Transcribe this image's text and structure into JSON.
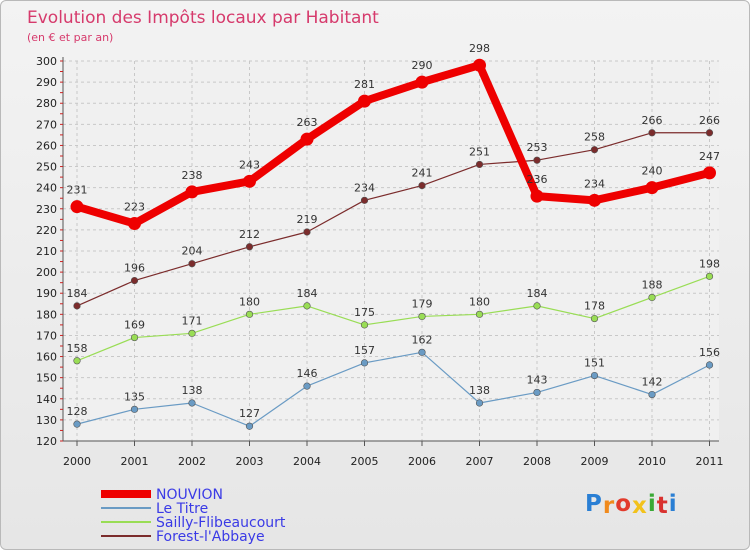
{
  "chart_data": {
    "type": "line",
    "title": "Evolution des Impôts locaux par Habitant",
    "subtitle": "(en € et par an)",
    "x": [
      "2000",
      "2001",
      "2002",
      "2003",
      "2004",
      "2005",
      "2006",
      "2007",
      "2008",
      "2009",
      "2010",
      "2011"
    ],
    "ylim": [
      120,
      300
    ],
    "yticks": [
      120,
      130,
      140,
      150,
      160,
      170,
      180,
      190,
      200,
      210,
      220,
      230,
      240,
      250,
      260,
      270,
      280,
      290,
      300
    ],
    "grid": true,
    "legend_position": "bottom-left",
    "series": [
      {
        "name": "NOUVION",
        "color": "#ee0000",
        "emphasis": true,
        "values": [
          231,
          223,
          238,
          243,
          263,
          281,
          290,
          298,
          236,
          234,
          240,
          247
        ]
      },
      {
        "name": "Le Titre",
        "color": "#6a9bc4",
        "values": [
          128,
          135,
          138,
          127,
          146,
          157,
          162,
          138,
          143,
          151,
          142,
          156
        ]
      },
      {
        "name": "Sailly-Flibeaucourt",
        "color": "#99dd55",
        "values": [
          158,
          169,
          171,
          180,
          184,
          175,
          179,
          180,
          184,
          178,
          188,
          198
        ]
      },
      {
        "name": "Forest-l'Abbaye",
        "color": "#7b2c2c",
        "values": [
          184,
          196,
          204,
          212,
          219,
          234,
          241,
          251,
          253,
          258,
          266,
          266
        ]
      }
    ]
  },
  "branding": {
    "logo_letters": [
      "P",
      "r",
      "o",
      "x",
      "i",
      "t",
      "i"
    ],
    "logo_colors": [
      "#2a7fd4",
      "#f08a1c",
      "#e23b2c",
      "#f2c21b",
      "#39a935",
      "#d9322f",
      "#2a7fd4"
    ]
  }
}
